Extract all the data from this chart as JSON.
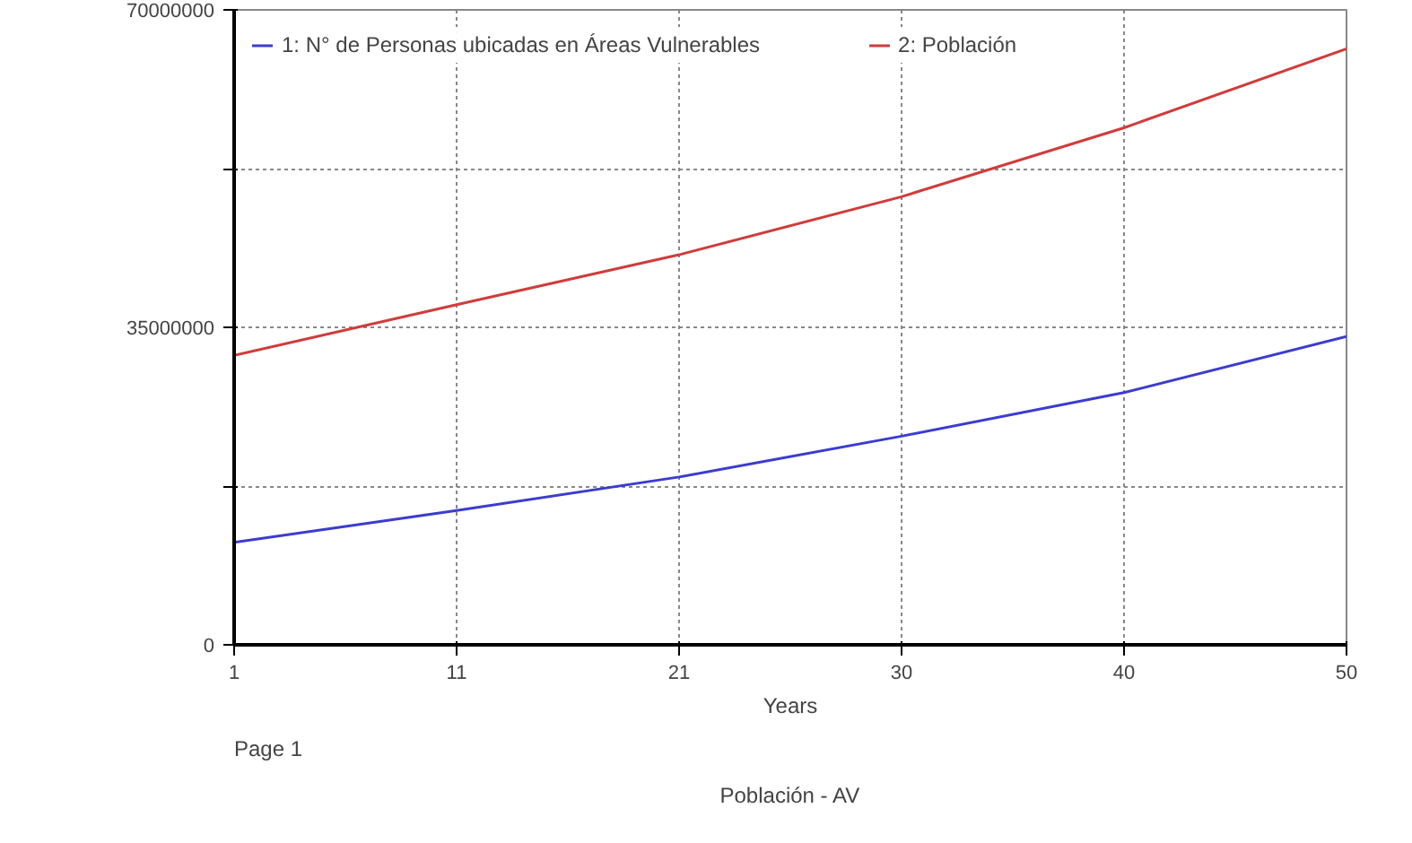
{
  "chart_data": {
    "type": "line",
    "xlabel": "Years",
    "annotations": [
      "Page 1",
      "Población - AV"
    ],
    "x": [
      1,
      10.8,
      20.6,
      30.4,
      40.2,
      50
    ],
    "series": [
      {
        "name": "1: N° de Personas ubicadas en Áreas Vulnerables",
        "color": "#3c3cd0",
        "values": [
          11300000,
          14800000,
          18500000,
          23000000,
          27800000,
          34000000
        ]
      },
      {
        "name": "2: Población",
        "color": "#d03c3c",
        "values": [
          31900000,
          37500000,
          43000000,
          49400000,
          57000000,
          65700000
        ]
      }
    ],
    "xlim": [
      1,
      50
    ],
    "ylim": [
      0,
      70000000
    ],
    "xticks": [
      1,
      {
        "value": 10.8,
        "label": "11"
      },
      {
        "value": 20.6,
        "label": "21"
      },
      {
        "value": 30.4,
        "label": "30"
      },
      {
        "value": 40.2,
        "label": "40"
      },
      50
    ],
    "yticks": [
      0,
      {
        "value": 17500000,
        "label": null
      },
      35000000,
      {
        "value": 52500000,
        "label": null
      },
      70000000
    ],
    "grid": true,
    "legend": "top",
    "line_style": "solid"
  }
}
